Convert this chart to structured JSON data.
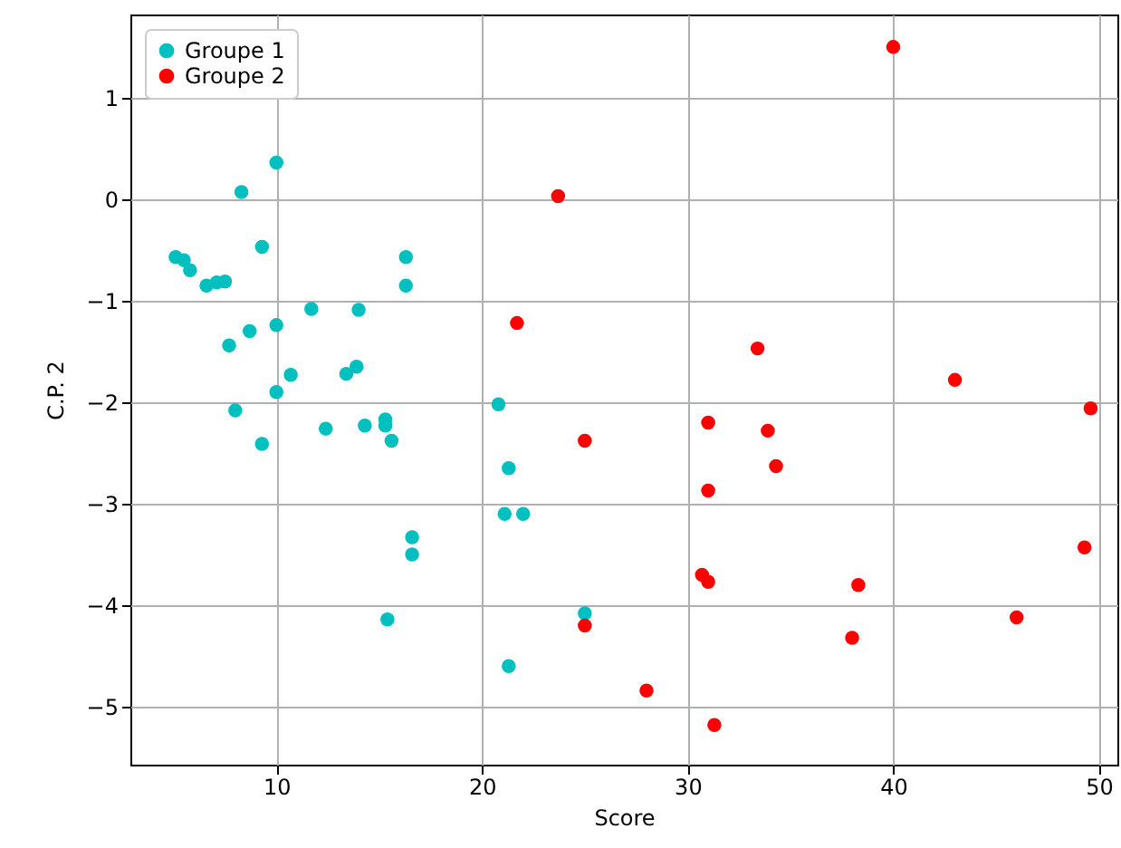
{
  "chart_data": {
    "type": "scatter",
    "xlabel": "Score",
    "ylabel": "C.P. 2",
    "xlim": [
      2.9,
      50.9
    ],
    "ylim": [
      -5.57,
      1.82
    ],
    "xticks": [
      10,
      20,
      30,
      40,
      50
    ],
    "yticks": [
      -5,
      -4,
      -3,
      -2,
      -1,
      0,
      1
    ],
    "grid": true,
    "legend": "top left",
    "marker": "circle",
    "series": [
      {
        "name": "Groupe 1",
        "color": "#00bfbf",
        "x": [
          5.1,
          5.5,
          5.8,
          6.6,
          7.1,
          7.5,
          7.7,
          8.0,
          8.3,
          8.7,
          9.3,
          9.3,
          10.0,
          10.0,
          10.0,
          10.7,
          11.7,
          12.4,
          13.4,
          13.9,
          14.0,
          14.3,
          15.3,
          15.3,
          15.4,
          15.6,
          16.3,
          16.3,
          16.6,
          16.6,
          20.8,
          21.1,
          21.3,
          21.3,
          22.0,
          25.0
        ],
        "values": [
          -0.57,
          -0.6,
          -0.7,
          -0.85,
          -0.82,
          -0.81,
          -1.44,
          -2.08,
          0.07,
          -1.3,
          -0.47,
          -2.41,
          0.36,
          -1.24,
          -1.9,
          -1.73,
          -1.08,
          -2.26,
          -1.72,
          -1.65,
          -1.09,
          -2.23,
          -2.17,
          -2.23,
          -4.14,
          -2.38,
          -0.57,
          -0.85,
          -3.33,
          -3.5,
          -2.02,
          -3.1,
          -2.65,
          -4.6,
          -3.1,
          -4.08
        ]
      },
      {
        "name": "Groupe 2",
        "color": "#ff0000",
        "x": [
          23.7,
          21.7,
          25.0,
          25.0,
          28.0,
          30.7,
          31.0,
          31.0,
          31.0,
          31.3,
          33.4,
          33.9,
          34.3,
          38.0,
          38.3,
          40.0,
          43.0,
          46.0,
          49.3,
          49.6
        ],
        "values": [
          0.03,
          -1.22,
          -2.38,
          -4.2,
          -4.84,
          -3.7,
          -3.77,
          -2.2,
          -2.87,
          -5.18,
          -1.47,
          -2.28,
          -2.63,
          -4.32,
          -3.8,
          1.5,
          -1.78,
          -4.12,
          -3.43,
          -2.06
        ]
      }
    ]
  }
}
